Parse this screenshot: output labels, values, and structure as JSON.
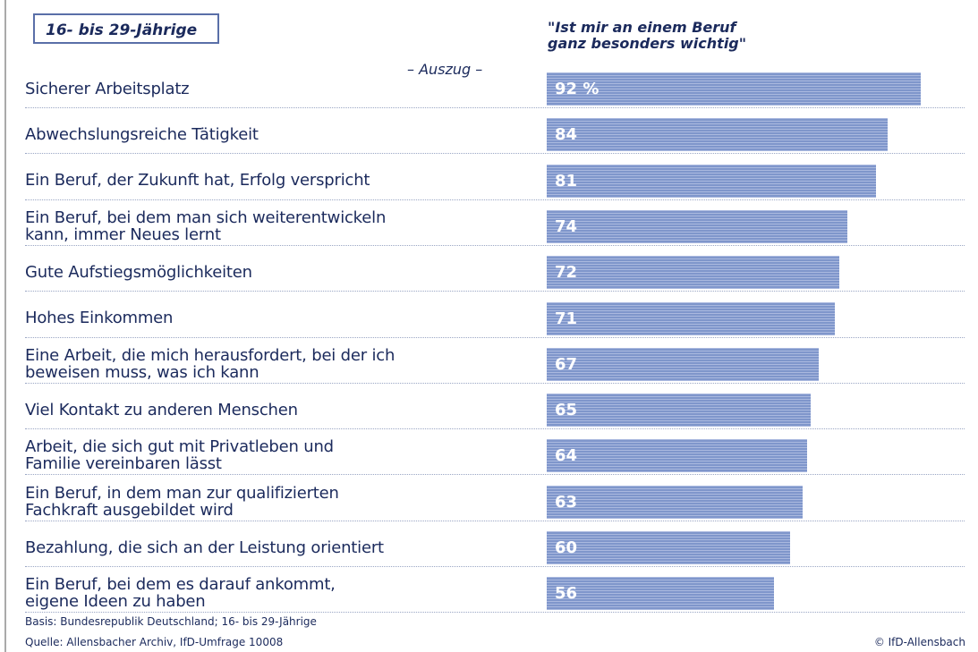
{
  "chart_data": {
    "type": "bar",
    "title": "16- bis 29-Jährige",
    "subtitle": "\"Ist mir an einem Beruf\nganz besonders wichtig\"",
    "annotation": "– Auszug –",
    "categories": [
      "Sicherer Arbeitsplatz",
      "Abwechslungsreiche Tätigkeit",
      "Ein Beruf, der Zukunft hat, Erfolg verspricht",
      "Ein Beruf, bei dem man sich weiterentwickeln\nkann, immer Neues lernt",
      "Gute Aufstiegsmöglichkeiten",
      "Hohes Einkommen",
      "Eine Arbeit, die mich herausfordert, bei der ich\nbeweisen muss, was ich kann",
      "Viel Kontakt zu anderen Menschen",
      "Arbeit, die sich gut mit Privatleben und\nFamilie vereinbaren lässt",
      "Ein Beruf, in dem man zur qualifizierten\nFachkraft ausgebildet wird",
      "Bezahlung, die sich an der Leistung orientiert",
      "Ein Beruf, bei dem es darauf ankommt,\neigene Ideen zu haben"
    ],
    "values": [
      92,
      84,
      81,
      74,
      72,
      71,
      67,
      65,
      64,
      63,
      60,
      56
    ],
    "value_labels": [
      "92 %",
      "84",
      "81",
      "74",
      "72",
      "71",
      "67",
      "65",
      "64",
      "63",
      "60",
      "56"
    ],
    "color": "#7f96cb",
    "footnotes": [
      "Basis: Bundesrepublik Deutschland; 16- bis 29-Jährige",
      "Quelle: Allensbacher Archiv, IfD-Umfrage 10008"
    ],
    "credit": "© IfD-Allensbach"
  }
}
